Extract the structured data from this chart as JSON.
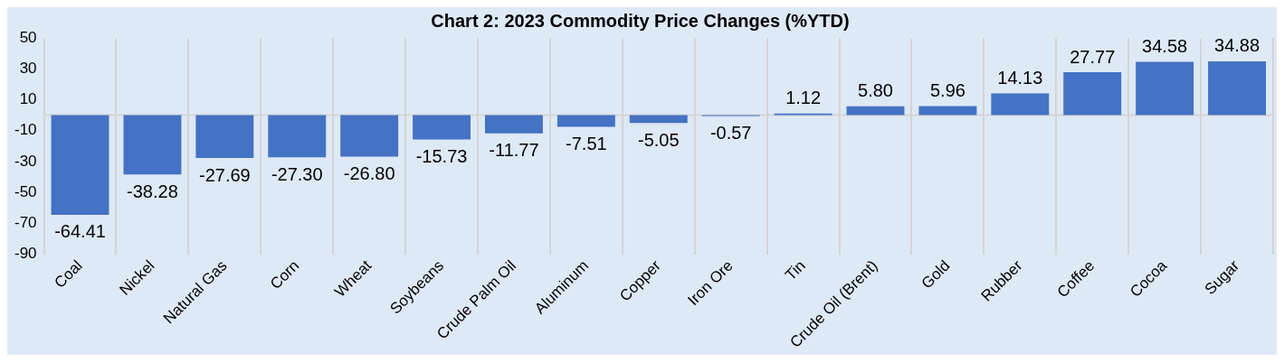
{
  "chart_data": {
    "type": "bar",
    "title": "Chart 2: 2023 Commodity Price Changes (%YTD)",
    "categories": [
      "Coal",
      "Nickel",
      "Natural Gas",
      "Corn",
      "Wheat",
      "Soybeans",
      "Crude Palm Oil",
      "Aluminum",
      "Copper",
      "Iron Ore",
      "Tin",
      "Crude Oil (Brent)",
      "Gold",
      "Rubber",
      "Coffee",
      "Cocoa",
      "Sugar"
    ],
    "values": [
      -64.41,
      -38.28,
      -27.69,
      -27.3,
      -26.8,
      -15.73,
      -11.77,
      -7.51,
      -5.05,
      -0.57,
      1.12,
      5.8,
      5.96,
      14.13,
      27.77,
      34.58,
      34.88
    ],
    "value_labels": [
      "-64.41",
      "-38.28",
      "-27.69",
      "-27.30",
      "-26.80",
      "-15.73",
      "-11.77",
      "-7.51",
      "-5.05",
      "-0.57",
      "1.12",
      "5.80",
      "5.96",
      "14.13",
      "27.77",
      "34.58",
      "34.88"
    ],
    "color": "#4472c4",
    "ylim": [
      -90,
      50
    ],
    "yticks": [
      -90,
      -70,
      -50,
      -30,
      -10,
      10,
      30,
      50
    ],
    "grid": "x",
    "legend": false
  }
}
